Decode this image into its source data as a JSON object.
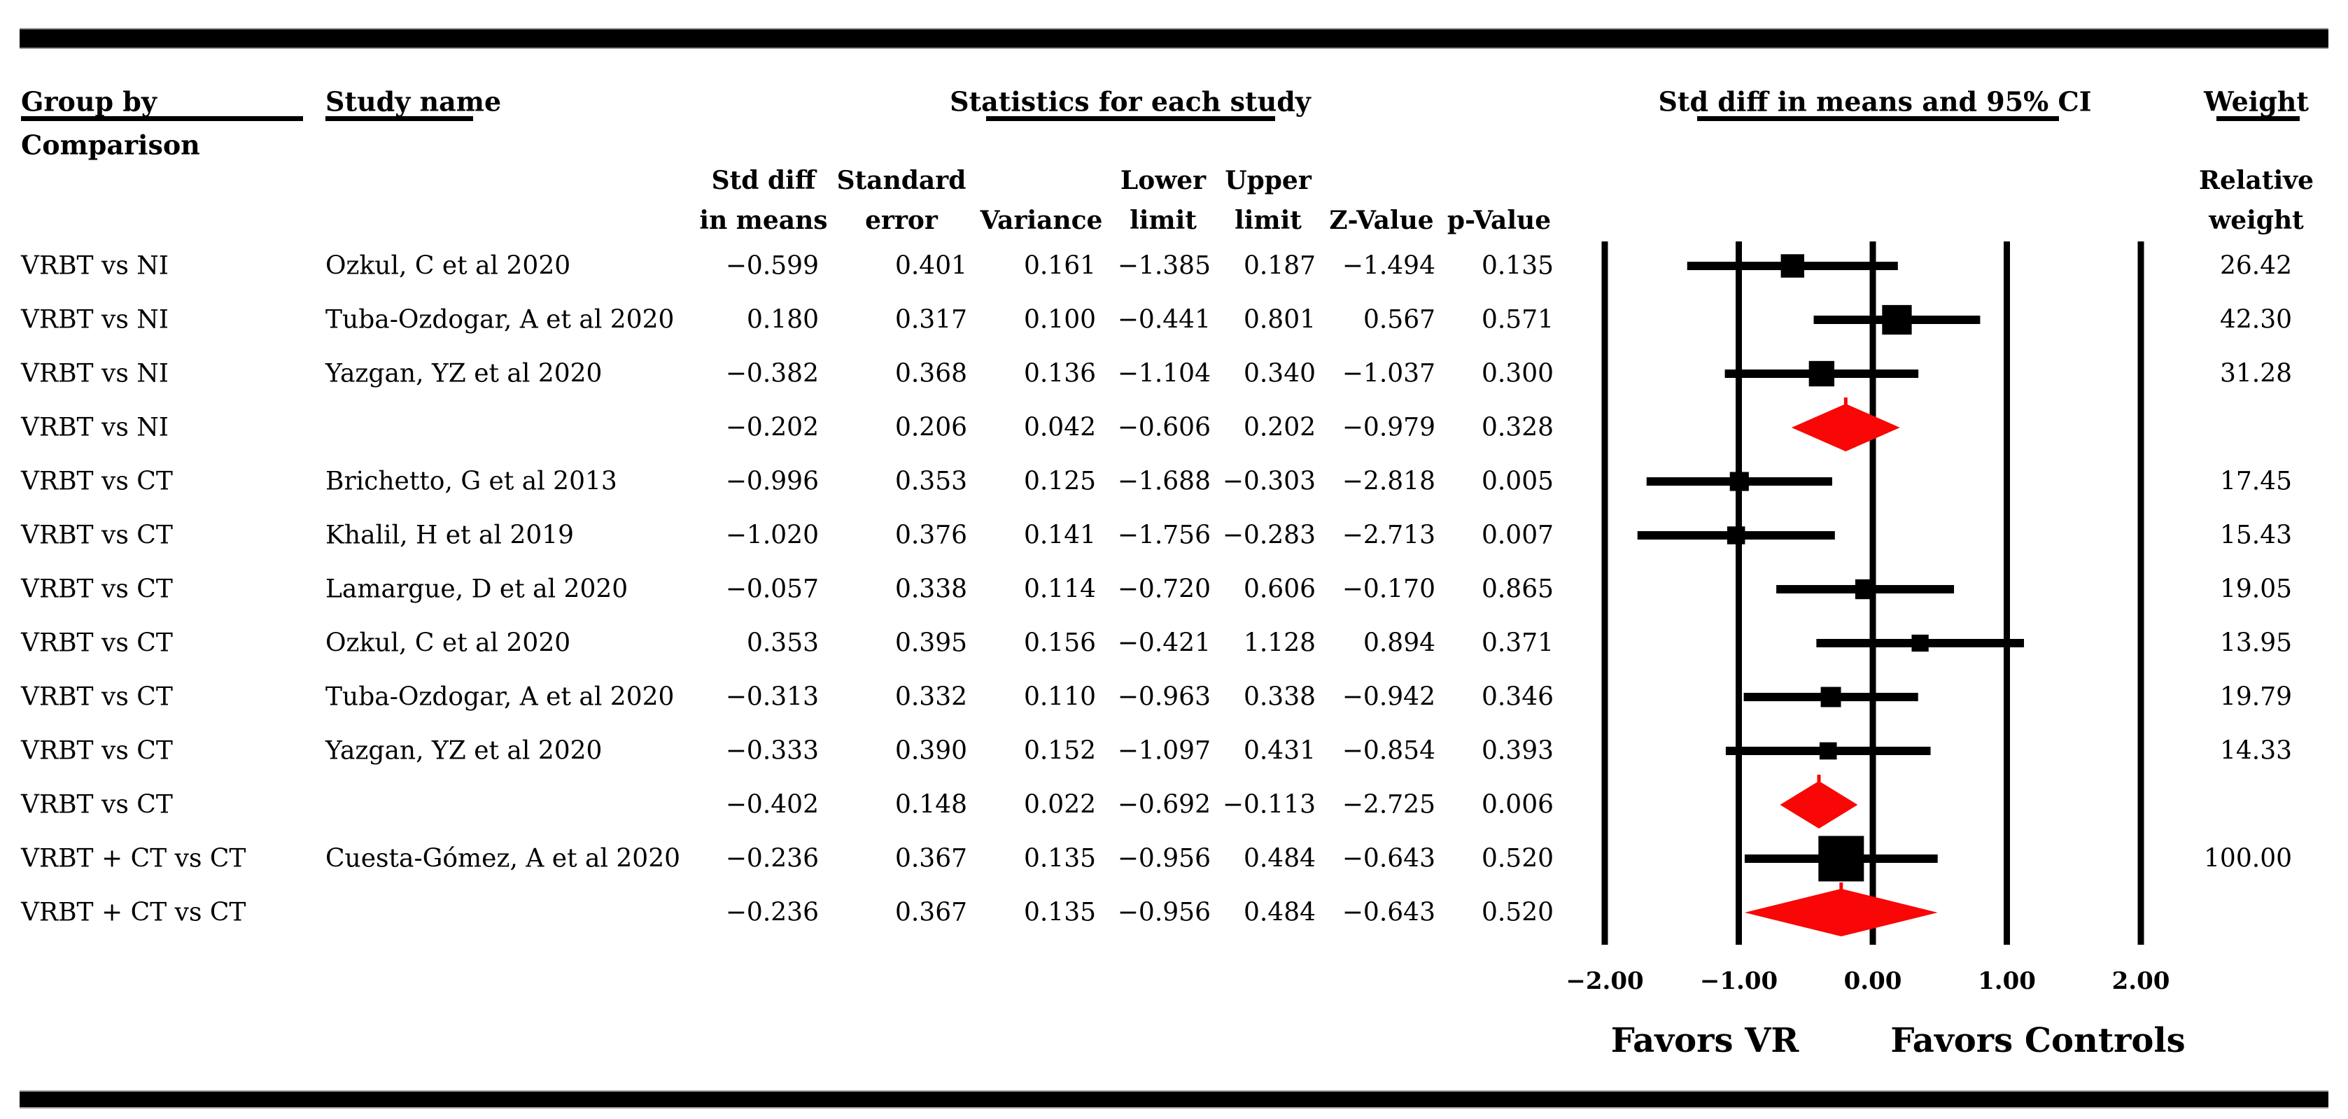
{
  "colors": {
    "marker_black": "#000000",
    "summary_red": "#f90606",
    "background": "#ffffff"
  },
  "header": {
    "group_by": "Group by",
    "comparison": "Comparison",
    "study_name": "Study name",
    "stats_title": "Statistics for each study",
    "plot_title": "Std diff in means and 95% CI",
    "weight_title": "Weight",
    "relative": "Relative",
    "weight_sub": "weight",
    "cols": [
      {
        "l1": "Std diff",
        "l2": "in means"
      },
      {
        "l1": "Standard",
        "l2": "error"
      },
      {
        "l1": "",
        "l2": "Variance"
      },
      {
        "l1": "Lower",
        "l2": "limit"
      },
      {
        "l1": "Upper",
        "l2": "limit"
      },
      {
        "l1": "",
        "l2": "Z-Value"
      },
      {
        "l1": "",
        "l2": "p-Value"
      }
    ]
  },
  "rows": [
    {
      "group": "VRBT vs NI",
      "study": "Ozkul, C et al 2020",
      "std_diff": "−0.599",
      "std_err": "0.401",
      "variance": "0.161",
      "lower": "−1.385",
      "upper": "0.187",
      "z": "−1.494",
      "p": "0.135",
      "weight": "26.42"
    },
    {
      "group": "VRBT vs NI",
      "study": "Tuba-Ozdogar, A et al 2020",
      "std_diff": "0.180",
      "std_err": "0.317",
      "variance": "0.100",
      "lower": "−0.441",
      "upper": "0.801",
      "z": "0.567",
      "p": "0.571",
      "weight": "42.30"
    },
    {
      "group": "VRBT vs NI",
      "study": "Yazgan, YZ et al 2020",
      "std_diff": "−0.382",
      "std_err": "0.368",
      "variance": "0.136",
      "lower": "−1.104",
      "upper": "0.340",
      "z": "−1.037",
      "p": "0.300",
      "weight": "31.28"
    },
    {
      "group": "VRBT vs NI",
      "study": "",
      "std_diff": "−0.202",
      "std_err": "0.206",
      "variance": "0.042",
      "lower": "−0.606",
      "upper": "0.202",
      "z": "−0.979",
      "p": "0.328",
      "weight": ""
    },
    {
      "group": "VRBT vs CT",
      "study": "Brichetto, G et al 2013",
      "std_diff": "−0.996",
      "std_err": "0.353",
      "variance": "0.125",
      "lower": "−1.688",
      "upper": "−0.303",
      "z": "−2.818",
      "p": "0.005",
      "weight": "17.45"
    },
    {
      "group": "VRBT vs CT",
      "study": "Khalil, H et al 2019",
      "std_diff": "−1.020",
      "std_err": "0.376",
      "variance": "0.141",
      "lower": "−1.756",
      "upper": "−0.283",
      "z": "−2.713",
      "p": "0.007",
      "weight": "15.43"
    },
    {
      "group": "VRBT vs CT",
      "study": "Lamargue, D et al 2020",
      "std_diff": "−0.057",
      "std_err": "0.338",
      "variance": "0.114",
      "lower": "−0.720",
      "upper": "0.606",
      "z": "−0.170",
      "p": "0.865",
      "weight": "19.05"
    },
    {
      "group": "VRBT vs CT",
      "study": "Ozkul, C et al 2020",
      "std_diff": "0.353",
      "std_err": "0.395",
      "variance": "0.156",
      "lower": "−0.421",
      "upper": "1.128",
      "z": "0.894",
      "p": "0.371",
      "weight": "13.95"
    },
    {
      "group": "VRBT vs CT",
      "study": "Tuba-Ozdogar, A et al 2020",
      "std_diff": "−0.313",
      "std_err": "0.332",
      "variance": "0.110",
      "lower": "−0.963",
      "upper": "0.338",
      "z": "−0.942",
      "p": "0.346",
      "weight": "19.79"
    },
    {
      "group": "VRBT vs CT",
      "study": "Yazgan, YZ et al 2020",
      "std_diff": "−0.333",
      "std_err": "0.390",
      "variance": "0.152",
      "lower": "−1.097",
      "upper": "0.431",
      "z": "−0.854",
      "p": "0.393",
      "weight": "14.33"
    },
    {
      "group": "VRBT vs CT",
      "study": "",
      "std_diff": "−0.402",
      "std_err": "0.148",
      "variance": "0.022",
      "lower": "−0.692",
      "upper": "−0.113",
      "z": "−2.725",
      "p": "0.006",
      "weight": ""
    },
    {
      "group": "VRBT + CT vs CT",
      "study": "Cuesta-Gómez, A et al 2020",
      "std_diff": "−0.236",
      "std_err": "0.367",
      "variance": "0.135",
      "lower": "−0.956",
      "upper": "0.484",
      "z": "−0.643",
      "p": "0.520",
      "weight": "100.00"
    },
    {
      "group": "VRBT + CT vs CT",
      "study": "",
      "std_diff": "−0.236",
      "std_err": "0.367",
      "variance": "0.135",
      "lower": "−0.956",
      "upper": "0.484",
      "z": "−0.643",
      "p": "0.520",
      "weight": ""
    }
  ],
  "axis": {
    "tick_labels": [
      "−2.00",
      "−1.00",
      "0.00",
      "1.00",
      "2.00"
    ],
    "favors_left": "Favors VR",
    "favors_right": "Favors Controls"
  },
  "chart_data": {
    "type": "scatter",
    "subtype": "forest-plot",
    "title": "Std diff in means and 95% CI",
    "xlim": [
      -2,
      2
    ],
    "x_ticks": [
      -2,
      -1,
      0,
      1,
      2
    ],
    "x_tick_labels": [
      "−2.00",
      "−1.00",
      "0.00",
      "1.00",
      "2.00"
    ],
    "grid": "vertical-lines-at-ticks",
    "legend_position": "none",
    "favors_left": "Favors VR",
    "favors_right": "Favors Controls",
    "points": [
      {
        "group": "VRBT vs NI",
        "study": "Ozkul, C et al 2020",
        "est": -0.599,
        "lo": -1.385,
        "hi": 0.187,
        "weight": 26.42,
        "marker": "square",
        "row_type": "study"
      },
      {
        "group": "VRBT vs NI",
        "study": "Tuba-Ozdogar, A et al 2020",
        "est": 0.18,
        "lo": -0.441,
        "hi": 0.801,
        "weight": 42.3,
        "marker": "square",
        "row_type": "study"
      },
      {
        "group": "VRBT vs NI",
        "study": "Yazgan, YZ et al 2020",
        "est": -0.382,
        "lo": -1.104,
        "hi": 0.34,
        "weight": 31.28,
        "marker": "square",
        "row_type": "study"
      },
      {
        "group": "VRBT vs NI",
        "study": null,
        "est": -0.202,
        "lo": -0.606,
        "hi": 0.202,
        "weight": null,
        "marker": "diamond",
        "row_type": "group-summary"
      },
      {
        "group": "VRBT vs CT",
        "study": "Brichetto, G et al 2013",
        "est": -0.996,
        "lo": -1.688,
        "hi": -0.303,
        "weight": 17.45,
        "marker": "square",
        "row_type": "study"
      },
      {
        "group": "VRBT vs CT",
        "study": "Khalil, H et al 2019",
        "est": -1.02,
        "lo": -1.756,
        "hi": -0.283,
        "weight": 15.43,
        "marker": "square",
        "row_type": "study"
      },
      {
        "group": "VRBT vs CT",
        "study": "Lamargue, D et al 2020",
        "est": -0.057,
        "lo": -0.72,
        "hi": 0.606,
        "weight": 19.05,
        "marker": "square",
        "row_type": "study"
      },
      {
        "group": "VRBT vs CT",
        "study": "Ozkul, C et al 2020",
        "est": 0.353,
        "lo": -0.421,
        "hi": 1.128,
        "weight": 13.95,
        "marker": "square",
        "row_type": "study"
      },
      {
        "group": "VRBT vs CT",
        "study": "Tuba-Ozdogar, A et al 2020",
        "est": -0.313,
        "lo": -0.963,
        "hi": 0.338,
        "weight": 19.79,
        "marker": "square",
        "row_type": "study"
      },
      {
        "group": "VRBT vs CT",
        "study": "Yazgan, YZ et al 2020",
        "est": -0.333,
        "lo": -1.097,
        "hi": 0.431,
        "weight": 14.33,
        "marker": "square",
        "row_type": "study"
      },
      {
        "group": "VRBT vs CT",
        "study": null,
        "est": -0.402,
        "lo": -0.692,
        "hi": -0.113,
        "weight": null,
        "marker": "diamond",
        "row_type": "group-summary"
      },
      {
        "group": "VRBT + CT vs CT",
        "study": "Cuesta-Gómez, A et al 2020",
        "est": -0.236,
        "lo": -0.956,
        "hi": 0.484,
        "weight": 100.0,
        "marker": "square",
        "row_type": "study"
      },
      {
        "group": "VRBT + CT vs CT",
        "study": null,
        "est": -0.236,
        "lo": -0.956,
        "hi": 0.484,
        "weight": null,
        "marker": "diamond",
        "row_type": "group-summary"
      }
    ]
  }
}
